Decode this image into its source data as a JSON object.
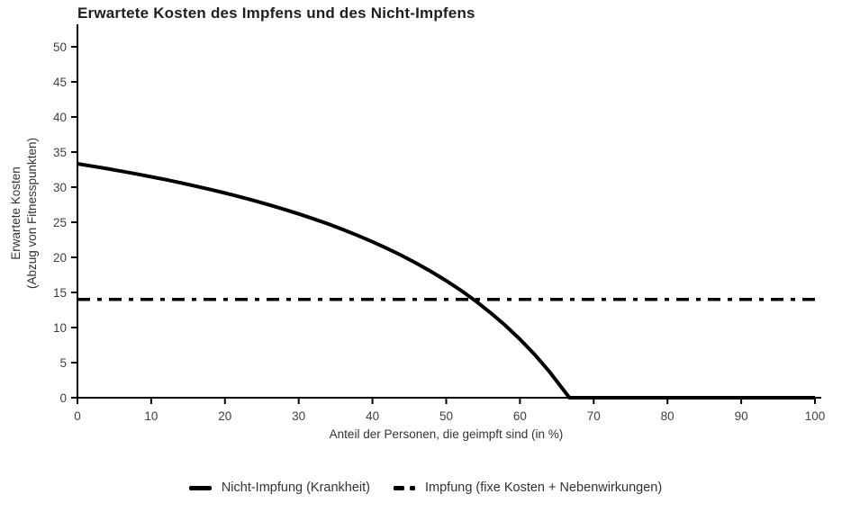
{
  "colors": {
    "line": "#000000",
    "axis": "#000000",
    "tick_text": "#404040",
    "title_text": "#1f1f1f",
    "background": "#ffffff"
  },
  "chart_data": {
    "type": "line",
    "title": "Erwartete Kosten des Impfens und des Nicht-Impfens",
    "xlabel": "Anteil der Personen, die geimpft sind (in %)",
    "ylabel_line1": "Erwartete Kosten",
    "ylabel_line2": "(Abzug von Fitnesspunkten)",
    "xlim": [
      0,
      100
    ],
    "ylim": [
      0,
      50
    ],
    "x_ticks": [
      0,
      10,
      20,
      30,
      40,
      50,
      60,
      70,
      80,
      90,
      100
    ],
    "y_ticks": [
      0,
      5,
      10,
      15,
      20,
      25,
      30,
      35,
      40,
      45,
      50
    ],
    "grid": false,
    "legend_position": "bottom",
    "series": [
      {
        "name": "Nicht-Impfung (Krankheit)",
        "style": "solid",
        "color": "#000000",
        "stroke_width": 4,
        "points": [
          [
            0,
            33.33
          ],
          [
            2,
            32.99
          ],
          [
            4,
            32.64
          ],
          [
            6,
            32.27
          ],
          [
            8,
            31.88
          ],
          [
            10,
            31.48
          ],
          [
            12,
            31.06
          ],
          [
            14,
            30.62
          ],
          [
            16,
            30.16
          ],
          [
            18,
            29.67
          ],
          [
            20,
            29.17
          ],
          [
            22,
            28.63
          ],
          [
            24,
            28.07
          ],
          [
            26,
            27.48
          ],
          [
            28,
            26.85
          ],
          [
            30,
            26.19
          ],
          [
            32,
            25.49
          ],
          [
            34,
            24.75
          ],
          [
            36,
            23.96
          ],
          [
            38,
            23.12
          ],
          [
            40,
            22.22
          ],
          [
            42,
            21.26
          ],
          [
            44,
            20.24
          ],
          [
            46,
            19.14
          ],
          [
            48,
            17.95
          ],
          [
            50,
            16.67
          ],
          [
            52,
            15.28
          ],
          [
            54,
            13.77
          ],
          [
            56,
            12.12
          ],
          [
            58,
            10.32
          ],
          [
            60,
            8.33
          ],
          [
            62,
            6.14
          ],
          [
            64,
            3.7
          ],
          [
            66,
            0.98
          ],
          [
            66.7,
            0
          ],
          [
            70,
            0
          ],
          [
            80,
            0
          ],
          [
            90,
            0
          ],
          [
            100,
            0
          ]
        ]
      },
      {
        "name": "Impfung (fixe Kosten + Nebenwirkungen)",
        "style": "dashdot",
        "color": "#000000",
        "stroke_width": 3.5,
        "points": [
          [
            0,
            14
          ],
          [
            100,
            14
          ]
        ]
      }
    ]
  }
}
